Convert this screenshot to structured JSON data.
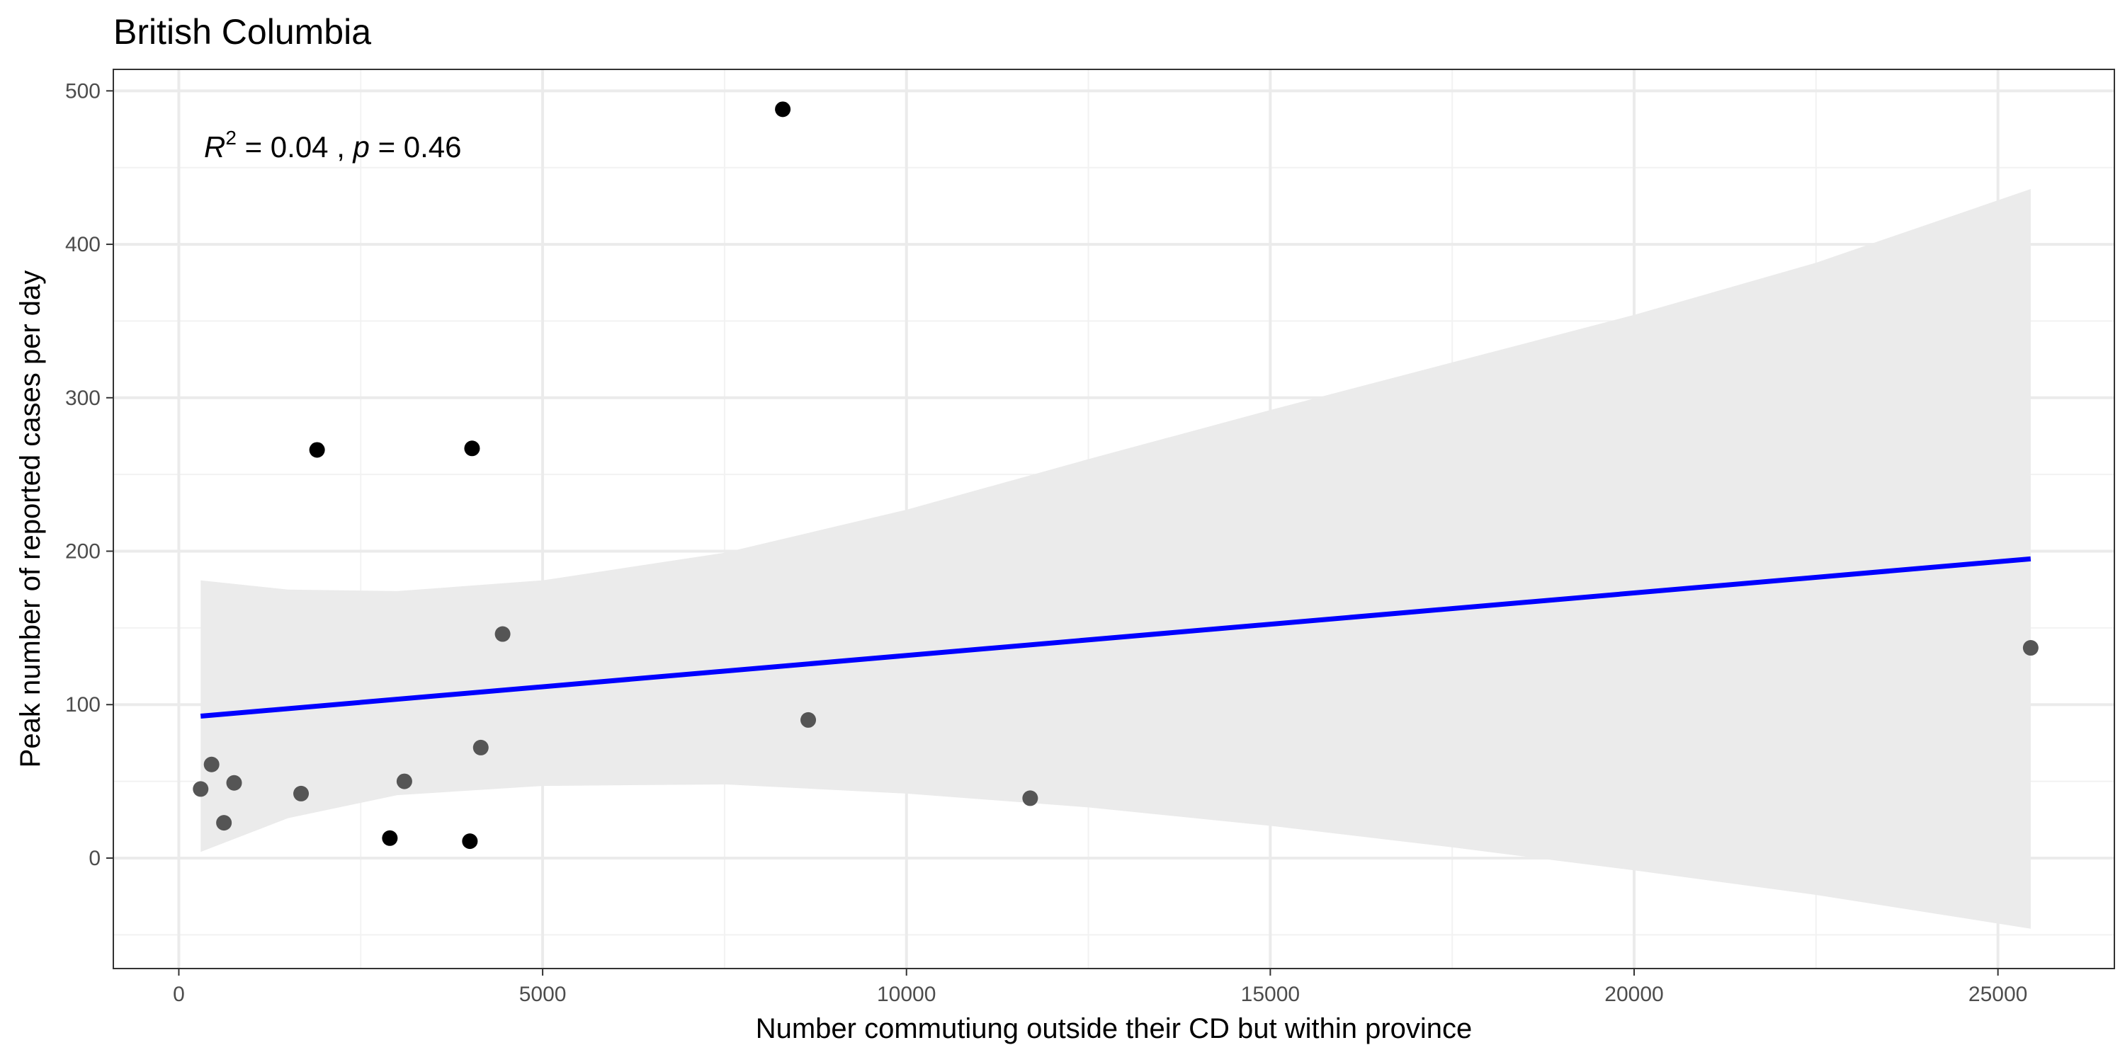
{
  "chart_data": {
    "type": "scatter",
    "title": "British Columbia",
    "xlabel": "Number commutiung outside their CD but within province",
    "ylabel": "Peak number of reported cases per day",
    "xlim": [
      -900,
      26600
    ],
    "ylim": [
      -72,
      514
    ],
    "x_ticks": [
      0,
      5000,
      10000,
      15000,
      20000,
      25000
    ],
    "x_tick_labels": [
      "0",
      "5000",
      "10000",
      "15000",
      "20000",
      "25000"
    ],
    "y_ticks": [
      0,
      100,
      200,
      300,
      400,
      500
    ],
    "y_tick_labels": [
      "0",
      "100",
      "200",
      "300",
      "400",
      "500"
    ],
    "grid": true,
    "annotation": {
      "r2_symbol": "R",
      "r2_exponent": "2",
      "r2_value": " = 0.04",
      "sep": " , ",
      "p_symbol": "p",
      "p_value": " = 0.46"
    },
    "points": [
      {
        "x": 300,
        "y": 45
      },
      {
        "x": 450,
        "y": 61
      },
      {
        "x": 620,
        "y": 23
      },
      {
        "x": 760,
        "y": 49
      },
      {
        "x": 1680,
        "y": 42
      },
      {
        "x": 1900,
        "y": 266
      },
      {
        "x": 2900,
        "y": 13
      },
      {
        "x": 3100,
        "y": 50
      },
      {
        "x": 4000,
        "y": 11
      },
      {
        "x": 4030,
        "y": 267
      },
      {
        "x": 4150,
        "y": 72
      },
      {
        "x": 4450,
        "y": 146
      },
      {
        "x": 8300,
        "y": 488
      },
      {
        "x": 8650,
        "y": 90
      },
      {
        "x": 11700,
        "y": 39
      },
      {
        "x": 25450,
        "y": 137
      }
    ],
    "fit": {
      "x": [
        300,
        25450
      ],
      "y": [
        92.5,
        195
      ]
    },
    "confidence_band": {
      "x": [
        300,
        1500,
        3000,
        5000,
        7500,
        10000,
        12500,
        15000,
        17500,
        20000,
        22500,
        25450
      ],
      "upper": [
        181,
        175,
        174,
        181,
        199,
        227,
        260,
        292,
        323,
        354,
        388,
        436
      ],
      "lower": [
        4,
        26,
        41,
        47,
        48,
        42,
        33,
        21,
        7,
        -8,
        -24,
        -46
      ]
    },
    "colors": {
      "fit_line": "#0000ff",
      "band": "#ebebeb",
      "point_dark": "#000000",
      "point_mid": "#555555",
      "grid_major": "#ebebeb",
      "grid_minor": "#f2f2f2",
      "panel_border": "#333333"
    }
  }
}
